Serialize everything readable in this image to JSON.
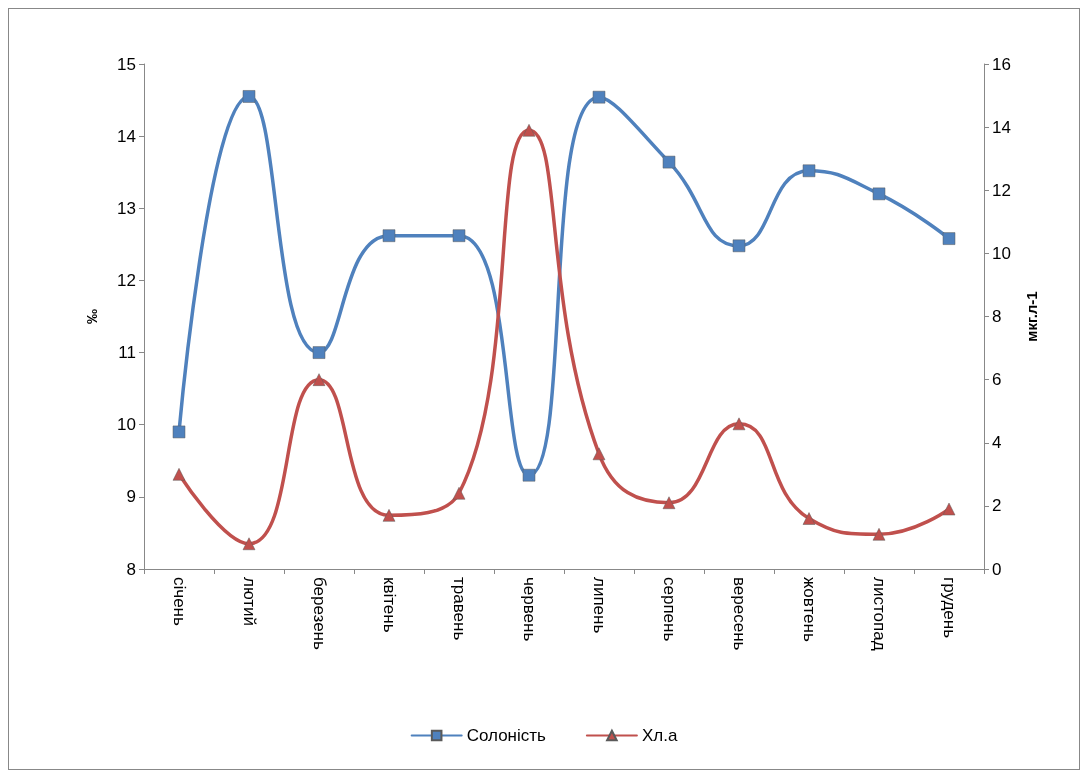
{
  "chart_data": {
    "type": "line",
    "categories": [
      "січень",
      "лютий",
      "березень",
      "квітень",
      "травень",
      "червень",
      "липень",
      "серпень",
      "вересень",
      "жовтень",
      "листопад",
      "грудень"
    ],
    "series": [
      {
        "name": "Солоність",
        "color": "#4f81bd",
        "marker": "square",
        "values": [
          9.9,
          14.55,
          11.0,
          12.62,
          12.62,
          9.3,
          14.54,
          13.64,
          12.48,
          13.52,
          13.2,
          12.58
        ]
      },
      {
        "name": "Хл.а",
        "color": "#c0504d",
        "marker": "triangle",
        "axis": "y2",
        "values": [
          3.0,
          0.8,
          6.0,
          1.7,
          2.4,
          13.9,
          3.65,
          2.1,
          4.6,
          1.6,
          1.1,
          1.9
        ]
      }
    ],
    "ylabel": "‰",
    "y2label": "мкг.л-1",
    "ylim": [
      8,
      15
    ],
    "yticks": [
      8,
      9,
      10,
      11,
      12,
      13,
      14,
      15
    ],
    "y2lim": [
      0,
      16
    ],
    "y2ticks": [
      0,
      2,
      4,
      6,
      8,
      10,
      12,
      14,
      16
    ],
    "legend": "bottom",
    "line_style": "solid"
  }
}
